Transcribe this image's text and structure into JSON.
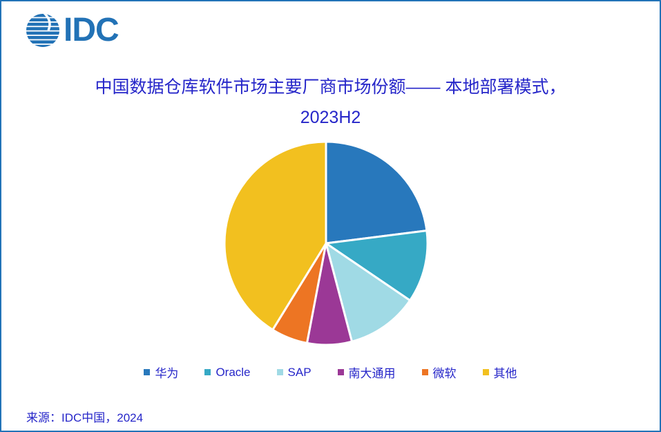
{
  "logo": {
    "text": "IDC",
    "brand_color": "#2272B6"
  },
  "frame": {
    "border_color": "#2273B8"
  },
  "title": {
    "line1": "中国数据仓库软件市场主要厂商市场份额—— 本地部署模式，",
    "line2": "2023H2",
    "color": "#2626C9"
  },
  "source": {
    "text": "来源：IDC中国，2024"
  },
  "chart_data": {
    "type": "pie",
    "title": "中国数据仓库软件市场主要厂商市场份额—— 本地部署模式，2023H2",
    "start_angle_deg": 0,
    "direction": "clockwise",
    "legend_position": "bottom",
    "values_note": "percent share estimated from slice angles (no data labels shown)",
    "series": [
      {
        "name": "华为",
        "value": 23.0,
        "color": "#2878BC"
      },
      {
        "name": "Oracle",
        "value": 11.5,
        "color": "#36A9C5"
      },
      {
        "name": "SAP",
        "value": 11.4,
        "color": "#A0DAE5"
      },
      {
        "name": "南大通用",
        "value": 7.1,
        "color": "#9B3896"
      },
      {
        "name": "微软",
        "value": 5.8,
        "color": "#ED7523"
      },
      {
        "name": "其他",
        "value": 41.2,
        "color": "#F2C01F"
      }
    ]
  }
}
